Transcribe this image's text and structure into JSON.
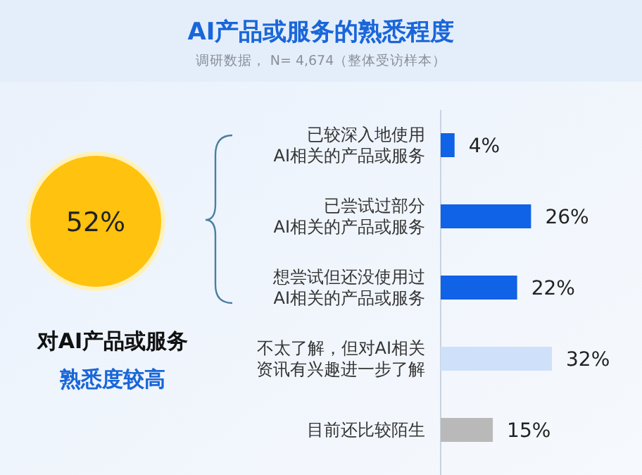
{
  "chart_data": {
    "type": "bar",
    "orientation": "horizontal",
    "title": "AI产品或服务的熟悉程度",
    "subtitle": "调研数据， N= 4,674（整体受访样本）",
    "categories": [
      "已较深入地使用AI相关的产品或服务",
      "已尝试过部分AI相关的产品或服务",
      "想尝试但还没使用过AI相关的产品或服务",
      "不太了解，但对AI相关资讯有兴趣进一步了解",
      "目前还比较陌生"
    ],
    "values": [
      4,
      26,
      22,
      32,
      15
    ],
    "colors": [
      "#1062e6",
      "#1062e6",
      "#1062e6",
      "#cfe0fa",
      "#b9b9b9"
    ],
    "value_labels": [
      "4%",
      "26%",
      "22%",
      "32%",
      "15%"
    ],
    "annotations": [
      "52%",
      "对AI产品或服务",
      "熟悉度较高"
    ]
  }
}
